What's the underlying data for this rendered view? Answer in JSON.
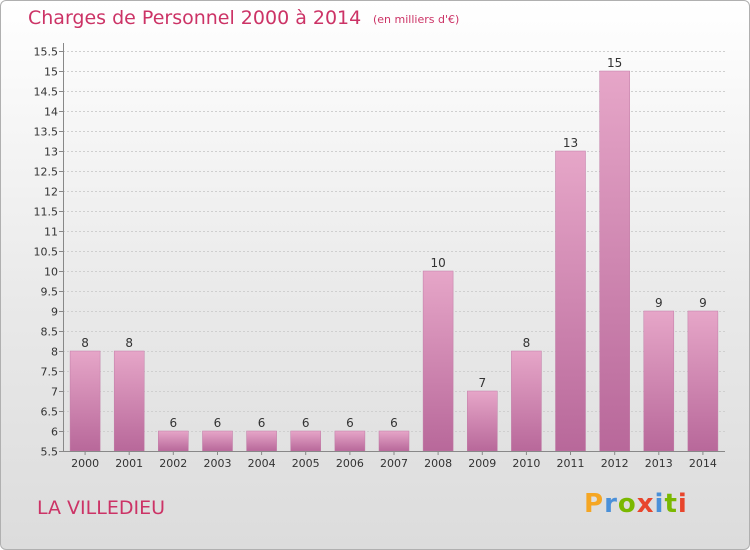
{
  "header": {
    "title": "Charges de Personnel 2000 à 2014",
    "subtitle": "(en milliers d'€)"
  },
  "footer": {
    "place": "LA VILLEDIEU",
    "logo": "Proxiti",
    "logo_colors": [
      "#f5a623",
      "#4a90d9",
      "#7ab800",
      "#e8452c",
      "#4a90d9",
      "#7ab800",
      "#e8452c"
    ]
  },
  "colors": {
    "bar_top": "#e6a6c8",
    "bar_bottom": "#b8689a",
    "accent": "#cc3366"
  },
  "chart_data": {
    "type": "bar",
    "title": "Charges de Personnel 2000 à 2014",
    "subtitle": "(en milliers d'€)",
    "categories": [
      "2000",
      "2001",
      "2002",
      "2003",
      "2004",
      "2005",
      "2006",
      "2007",
      "2008",
      "2009",
      "2010",
      "2011",
      "2012",
      "2013",
      "2014"
    ],
    "values": [
      8,
      8,
      6,
      6,
      6,
      6,
      6,
      6,
      10,
      7,
      8,
      13,
      15,
      9,
      9
    ],
    "value_labels": [
      "8",
      "8",
      "6",
      "6",
      "6",
      "6",
      "6",
      "6",
      "10",
      "7",
      "8",
      "13",
      "15",
      "9",
      "9"
    ],
    "ylim": [
      5.5,
      15.5
    ],
    "yticks": [
      5.5,
      6,
      6.5,
      7,
      7.5,
      8,
      8.5,
      9,
      9.5,
      10,
      10.5,
      11,
      11.5,
      12,
      12.5,
      13,
      13.5,
      14,
      14.5,
      15,
      15.5
    ],
    "ytick_labels": [
      "5.5",
      "6",
      "6.5",
      "7",
      "7.5",
      "8",
      "8.5",
      "9",
      "9.5",
      "10",
      "10.5",
      "11",
      "11.5",
      "12",
      "12.5",
      "13",
      "13.5",
      "14",
      "14.5",
      "15",
      "15.5"
    ],
    "grid": true
  }
}
